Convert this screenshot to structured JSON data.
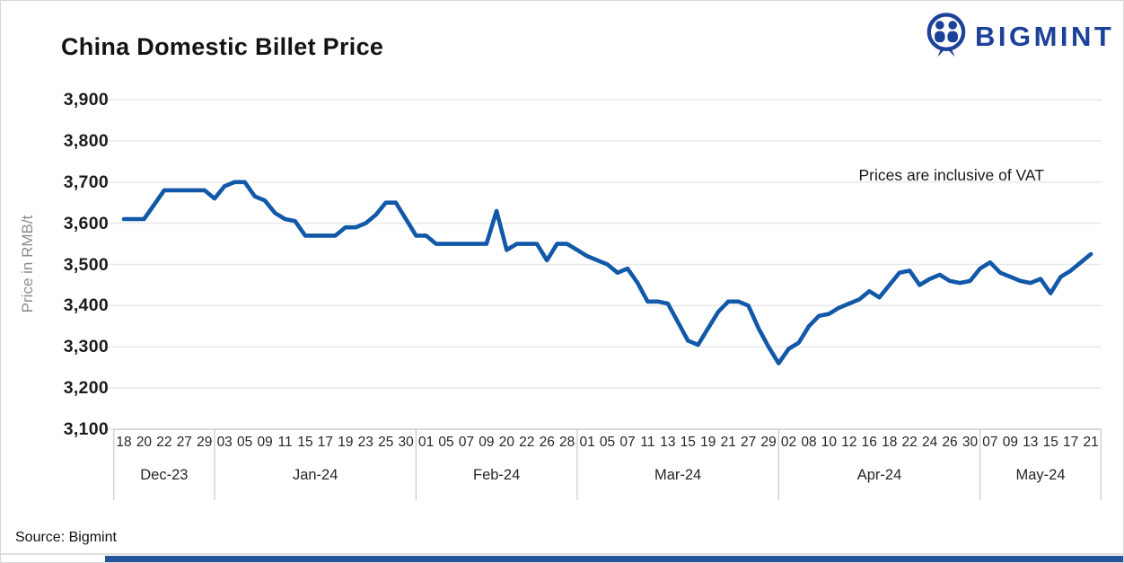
{
  "header": {
    "title": "China Domestic Billet Price",
    "logo_text": "BIGMINT",
    "logo_color": "#1C4199"
  },
  "chart_data": {
    "type": "line",
    "title": "China Domestic Billet Price",
    "ylabel": "Price in RMB/t",
    "annotation": "Prices are inclusive of VAT",
    "ylim": [
      3100,
      3900
    ],
    "ytick_step": 100,
    "ytick_labels": [
      "3,900",
      "3,800",
      "3,700",
      "3,600",
      "3,500",
      "3,400",
      "3,300",
      "3,200",
      "3,100"
    ],
    "grid": true,
    "legend": false,
    "line_color": "#1158A8",
    "x_ticks": [
      "18",
      "20",
      "22",
      "27",
      "29",
      "03",
      "05",
      "09",
      "11",
      "15",
      "17",
      "19",
      "23",
      "25",
      "30",
      "01",
      "05",
      "07",
      "09",
      "20",
      "22",
      "26",
      "28",
      "01",
      "05",
      "07",
      "11",
      "13",
      "15",
      "19",
      "21",
      "27",
      "29",
      "02",
      "08",
      "10",
      "12",
      "16",
      "18",
      "22",
      "24",
      "26",
      "30",
      "07",
      "09",
      "13",
      "15",
      "17",
      "21"
    ],
    "month_groups": [
      {
        "label": "Dec-23",
        "ticks": 5
      },
      {
        "label": "Jan-24",
        "ticks": 10
      },
      {
        "label": "Feb-24",
        "ticks": 8
      },
      {
        "label": "Mar-24",
        "ticks": 10
      },
      {
        "label": "Apr-24",
        "ticks": 10
      },
      {
        "label": "May-24",
        "ticks": 6
      }
    ],
    "points_per_tick_interval": 2,
    "series": [
      {
        "name": "China Domestic Billet Price (RMB/t)",
        "values": [
          3610,
          3610,
          3610,
          3645,
          3680,
          3680,
          3680,
          3680,
          3680,
          3660,
          3690,
          3700,
          3700,
          3665,
          3655,
          3625,
          3610,
          3605,
          3570,
          3570,
          3570,
          3570,
          3590,
          3590,
          3600,
          3620,
          3650,
          3650,
          3610,
          3570,
          3570,
          3550,
          3550,
          3550,
          3550,
          3550,
          3550,
          3630,
          3535,
          3550,
          3550,
          3550,
          3510,
          3550,
          3550,
          3535,
          3520,
          3510,
          3500,
          3480,
          3490,
          3455,
          3410,
          3410,
          3405,
          3360,
          3315,
          3305,
          3345,
          3385,
          3410,
          3410,
          3400,
          3345,
          3300,
          3260,
          3295,
          3310,
          3350,
          3375,
          3380,
          3395,
          3405,
          3415,
          3435,
          3420,
          3450,
          3480,
          3485,
          3450,
          3465,
          3475,
          3460,
          3455,
          3460,
          3490,
          3505,
          3480,
          3470,
          3460,
          3455,
          3465,
          3430,
          3470,
          3485,
          3505,
          3525
        ]
      }
    ]
  },
  "footer": {
    "source": "Source: Bigmint"
  }
}
